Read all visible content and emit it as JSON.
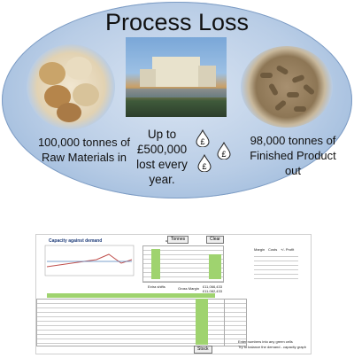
{
  "slide": {
    "title": "Process Loss",
    "raw_materials": "100,000 tonnes of Raw Materials in",
    "loss": "Up to £500,000 lost every year.",
    "finished_product": "98,000 tonnes of Finished Product out",
    "pound_symbol": "£"
  },
  "sheet": {
    "chart_title": "Capacity against demand",
    "units_label": "units per day",
    "tonnes_button": "Tonnes",
    "clear_button": "Clear",
    "extra_shifts": "Extra shifts",
    "gross_margin_label": "Gross Margin",
    "gross_margin_values": [
      "£11,066,433",
      "£11,082,433"
    ],
    "stock_button": "Stock",
    "instructions": [
      "Enter numbers into any green cells",
      "Try to balance the demand - capacity graph"
    ],
    "margin_headers": [
      "Margin",
      "Costs",
      "+/- Profit"
    ]
  },
  "colors": {
    "oval": "#b9cde6",
    "accent_green": "#9fd36f",
    "chart_line": "#c0504d"
  }
}
